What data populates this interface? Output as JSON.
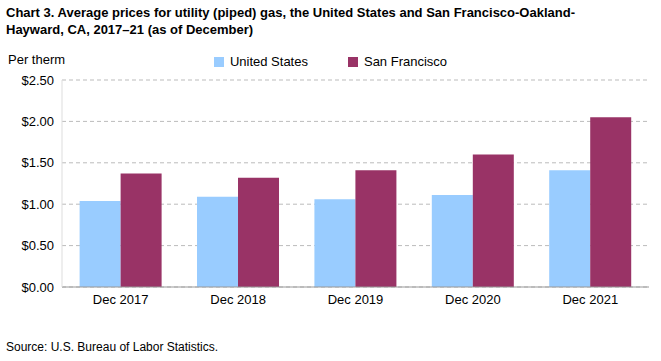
{
  "chart_data": {
    "type": "bar",
    "title": "Chart 3. Average prices for utility (piped) gas, the United States and San Francisco-Oakland-Hayward, CA, 2017–21 (as of December)",
    "y_label": "Per therm",
    "source": "Source: U.S. Bureau of Labor Statistics.",
    "categories": [
      "Dec 2017",
      "Dec 2018",
      "Dec 2019",
      "Dec 2020",
      "Dec 2021"
    ],
    "series": [
      {
        "name": "United States",
        "color": "#99ccff",
        "values": [
          1.04,
          1.09,
          1.06,
          1.11,
          1.41
        ]
      },
      {
        "name": "San Francisco",
        "color": "#993366",
        "values": [
          1.37,
          1.32,
          1.41,
          1.6,
          2.05
        ]
      }
    ],
    "ylim": [
      0,
      2.5
    ],
    "yticks": [
      {
        "value": 0,
        "label": "$0.00"
      },
      {
        "value": 0.5,
        "label": "$0.50"
      },
      {
        "value": 1,
        "label": "$1.00"
      },
      {
        "value": 1.5,
        "label": "$1.50"
      },
      {
        "value": 2,
        "label": "$2.00"
      },
      {
        "value": 2.5,
        "label": "$2.50"
      }
    ],
    "grid": true,
    "legend": "top"
  }
}
